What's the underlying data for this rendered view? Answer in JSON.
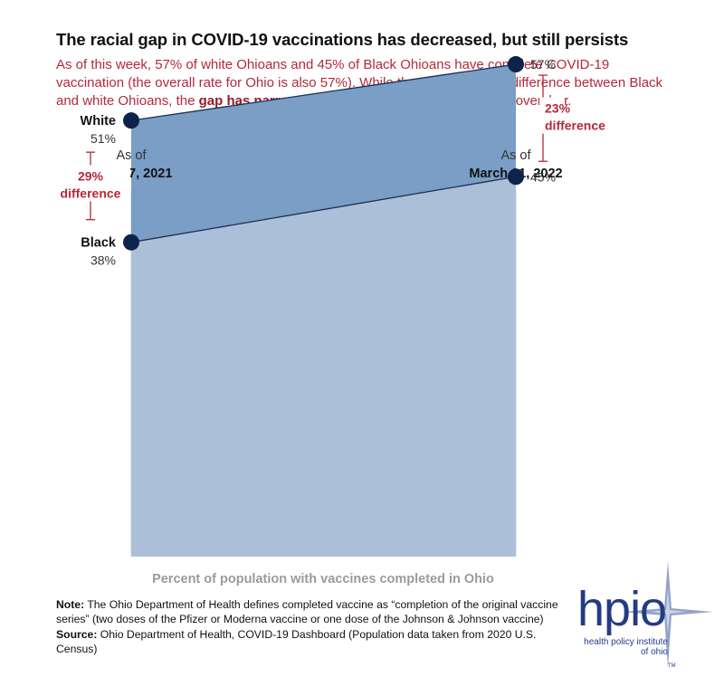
{
  "header": {
    "title": "The racial gap in COVID-19 vaccinations has decreased, but still persists",
    "subtitle_pre": "As of this week, 57% of white Ohioans and 45% of Black Ohioans have complete COVID-19 vaccination (the overall rate for Ohio is also 57%). While there is still a 23% difference between Black and white Ohioans, the ",
    "subtitle_bold": "gap has narrowed by 6 percentage points",
    "subtitle_post": " since November."
  },
  "chart_data": {
    "type": "area",
    "x": [
      "Nov. 17, 2021",
      "March 31, 2022"
    ],
    "x_prefix": "As of",
    "series": [
      {
        "name": "White",
        "values": [
          51,
          57
        ],
        "labels": [
          "51%",
          "57%"
        ]
      },
      {
        "name": "Black",
        "values": [
          38,
          45
        ],
        "labels": [
          "38%",
          "45%"
        ]
      }
    ],
    "gaps": [
      {
        "at": "Nov. 17, 2021",
        "line1": "29%",
        "line2": "difference"
      },
      {
        "at": "March 31, 2022",
        "line1": "23%",
        "line2": "difference"
      }
    ],
    "xlabel": "Percent of population with vaccines completed in Ohio",
    "colors": {
      "gap_fill": "#7a9ec5",
      "lower_fill": "#abc0d8",
      "marker": "#0d2349",
      "accent": "#b5283a",
      "axis_label": "#9b9b9b"
    }
  },
  "notes": {
    "note_label": "Note:",
    "note_text": " The Ohio Department of Health defines completed vaccine as “completion of the original vaccine series” (two doses of the Pfizer or Moderna vaccine or one dose of the Johnson & Johnson vaccine)",
    "source_label": "Source:",
    "source_text": " Ohio Department of Health, COVID-19 Dashboard (Population data taken from 2020 U.S. Census)"
  },
  "logo": {
    "word": "hpio",
    "sub1": "health policy institute",
    "sub2": "of ohio",
    "tm": "TM",
    "icon": "compass-star-icon"
  }
}
